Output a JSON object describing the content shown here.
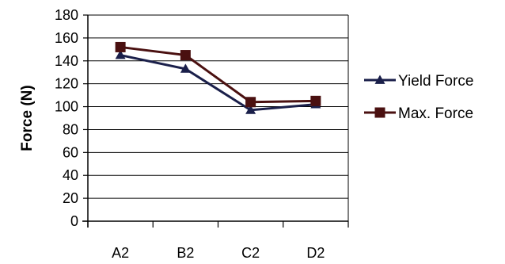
{
  "chart_data": {
    "type": "line",
    "categories": [
      "A2",
      "B2",
      "C2",
      "D2"
    ],
    "series": [
      {
        "name": "Yield Force",
        "values": [
          145,
          133,
          97,
          102
        ],
        "color": "#1a1f4a",
        "marker": "triangle"
      },
      {
        "name": "Max. Force",
        "values": [
          152,
          145,
          104,
          105
        ],
        "color": "#4a1010",
        "marker": "square"
      }
    ],
    "title": "",
    "xlabel": "",
    "ylabel": "Force (N)",
    "ylim": [
      0,
      180
    ],
    "yticks": [
      0,
      20,
      40,
      60,
      80,
      100,
      120,
      140,
      160,
      180
    ],
    "grid": true,
    "legend_position": "right"
  }
}
